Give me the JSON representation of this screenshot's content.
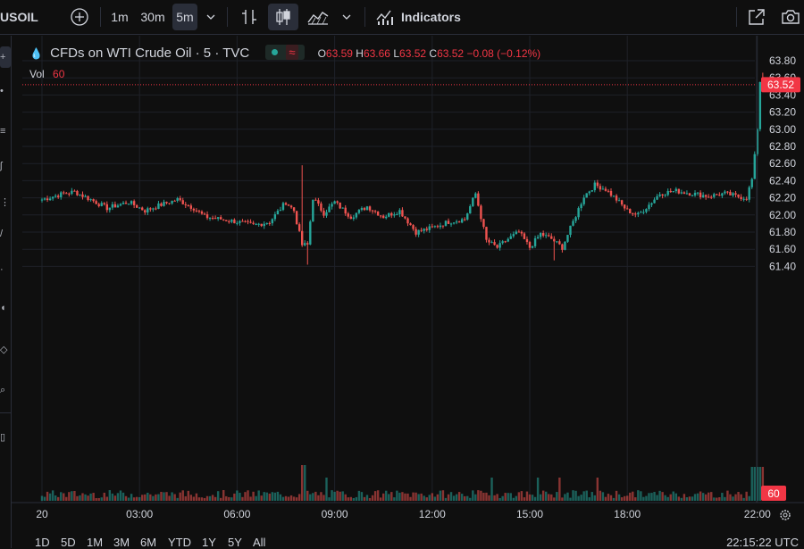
{
  "toolbar": {
    "symbol": "USOIL",
    "intervals": [
      "1m",
      "30m",
      "5m"
    ],
    "active_interval": "5m",
    "indicators_label": "Indicators"
  },
  "legend": {
    "title": "CFDs on WTI Crude Oil · 5 · TVC",
    "o_label": "O",
    "o_value": "63.59",
    "h_label": "H",
    "h_value": "63.66",
    "l_label": "L",
    "l_value": "63.52",
    "c_label": "C",
    "c_value": "63.52",
    "change": "−0.08 (−0.12%)",
    "vol_label": "Vol",
    "vol_value": "60"
  },
  "price_axis": {
    "ticks": [
      "63.80",
      "63.60",
      "63.40",
      "63.20",
      "63.00",
      "62.80",
      "62.60",
      "62.40",
      "62.20",
      "62.00",
      "61.80",
      "61.60",
      "61.40"
    ],
    "current_price_label": "63.52",
    "current_volume_label": "60"
  },
  "time_axis": {
    "ticks": [
      "20",
      "03:00",
      "06:00",
      "09:00",
      "12:00",
      "15:00",
      "18:00",
      "22:00"
    ]
  },
  "bottom": {
    "ranges": [
      "1D",
      "5D",
      "1M",
      "3M",
      "6M",
      "YTD",
      "1Y",
      "5Y",
      "All"
    ],
    "clock": "22:15:22 UTC"
  },
  "colors": {
    "up": "#26a69a",
    "down": "#ef5350",
    "price_line": "#f23645",
    "background": "#0f0f0f"
  },
  "chart_data": {
    "type": "candlestick",
    "ylim": [
      61.3,
      63.9
    ],
    "x_start": "00:00",
    "x_end": "22:15",
    "interval_minutes": 5,
    "anchor_closes": [
      [
        "00:00",
        62.18
      ],
      [
        "00:40",
        62.25
      ],
      [
        "01:00",
        62.27
      ],
      [
        "01:30",
        62.18
      ],
      [
        "02:00",
        62.08
      ],
      [
        "02:40",
        62.15
      ],
      [
        "03:10",
        62.05
      ],
      [
        "03:40",
        62.12
      ],
      [
        "04:10",
        62.18
      ],
      [
        "04:40",
        62.08
      ],
      [
        "05:00",
        61.98
      ],
      [
        "05:30",
        61.95
      ],
      [
        "06:00",
        61.92
      ],
      [
        "06:30",
        61.88
      ],
      [
        "07:00",
        61.92
      ],
      [
        "07:30",
        62.15
      ],
      [
        "07:45",
        62.05
      ],
      [
        "08:00",
        61.65
      ],
      [
        "08:10",
        61.65
      ],
      [
        "08:20",
        62.2
      ],
      [
        "08:40",
        62.02
      ],
      [
        "09:00",
        62.15
      ],
      [
        "09:30",
        61.98
      ],
      [
        "10:00",
        62.1
      ],
      [
        "10:30",
        61.98
      ],
      [
        "11:00",
        62.05
      ],
      [
        "11:30",
        61.8
      ],
      [
        "12:00",
        61.85
      ],
      [
        "12:30",
        61.92
      ],
      [
        "13:00",
        61.95
      ],
      [
        "13:20",
        62.25
      ],
      [
        "13:40",
        61.7
      ],
      [
        "14:00",
        61.62
      ],
      [
        "14:20",
        61.72
      ],
      [
        "14:40",
        61.8
      ],
      [
        "15:00",
        61.62
      ],
      [
        "15:20",
        61.78
      ],
      [
        "15:40",
        61.72
      ],
      [
        "16:00",
        61.62
      ],
      [
        "16:20",
        61.92
      ],
      [
        "16:40",
        62.22
      ],
      [
        "17:00",
        62.35
      ],
      [
        "17:20",
        62.3
      ],
      [
        "17:40",
        62.18
      ],
      [
        "18:00",
        62.05
      ],
      [
        "18:20",
        62.0
      ],
      [
        "18:40",
        62.12
      ],
      [
        "19:00",
        62.25
      ],
      [
        "19:30",
        62.28
      ],
      [
        "20:00",
        62.25
      ],
      [
        "20:30",
        62.22
      ],
      [
        "21:00",
        62.25
      ],
      [
        "21:20",
        62.22
      ],
      [
        "21:40",
        62.2
      ],
      [
        "21:50",
        62.42
      ],
      [
        "22:00",
        63.0
      ],
      [
        "22:05",
        63.55
      ],
      [
        "22:10",
        63.52
      ]
    ],
    "last": {
      "o": 63.59,
      "h": 63.66,
      "l": 63.52,
      "c": 63.52,
      "change": -0.08,
      "change_pct": -0.12
    },
    "volume_last": 60
  }
}
